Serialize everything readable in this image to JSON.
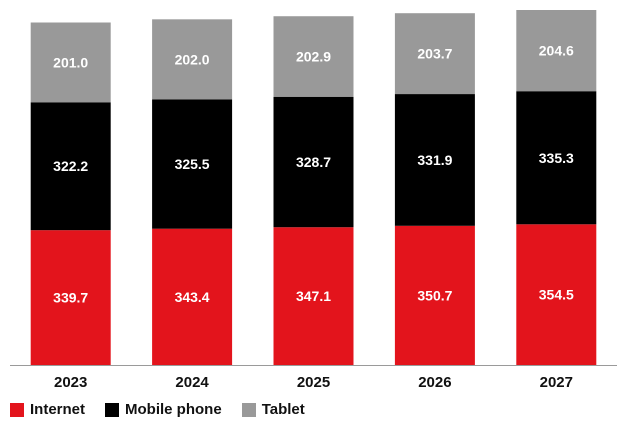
{
  "chart_data": {
    "type": "bar",
    "stacked": true,
    "categories": [
      "2023",
      "2024",
      "2025",
      "2026",
      "2027"
    ],
    "series": [
      {
        "name": "Internet",
        "color": "#e3141c",
        "values": [
          339.7,
          343.4,
          347.1,
          350.7,
          354.5
        ],
        "labels": [
          "339.7",
          "343.4",
          "347.1",
          "350.7",
          "354.5"
        ]
      },
      {
        "name": "Mobile phone",
        "color": "#000000",
        "values": [
          322.2,
          325.5,
          328.7,
          331.9,
          335.3
        ],
        "labels": [
          "322.2",
          "325.5",
          "328.7",
          "331.9",
          "335.3"
        ]
      },
      {
        "name": "Tablet",
        "color": "#999999",
        "values": [
          201.0,
          202.0,
          202.9,
          203.7,
          204.6
        ],
        "labels": [
          "201.0",
          "202.0",
          "202.9",
          "203.7",
          "204.6"
        ]
      }
    ],
    "title": "",
    "xlabel": "",
    "ylabel": "",
    "ylim": [
      0,
      900
    ],
    "grid": false,
    "legend_position": "bottom-left",
    "data_labels": true
  }
}
